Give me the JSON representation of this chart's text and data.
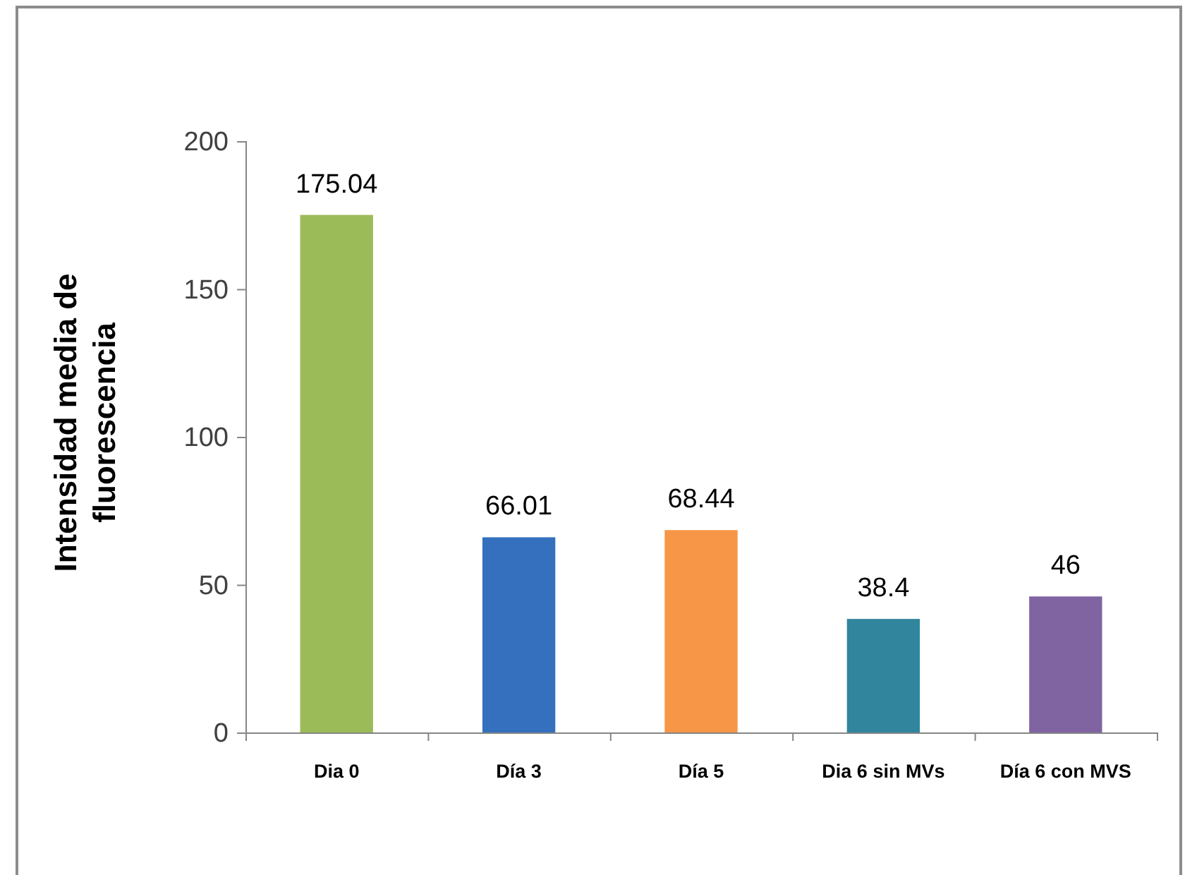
{
  "chart_data": {
    "type": "bar",
    "ylabel": "Intensidad media de fluorescencia",
    "categories": [
      "Dia 0",
      "Día 3",
      "Día 5",
      "Dia 6 sin MVs",
      "Día 6 con MVS"
    ],
    "values": [
      175.04,
      66.01,
      68.44,
      38.4,
      46
    ],
    "colors": [
      "#9bbb59",
      "#3470bd",
      "#f79646",
      "#31859c",
      "#8064a2"
    ],
    "ylim": [
      0,
      200
    ],
    "yticks": [
      0,
      50,
      100,
      150,
      200
    ],
    "grid": false,
    "data_labels": true
  }
}
